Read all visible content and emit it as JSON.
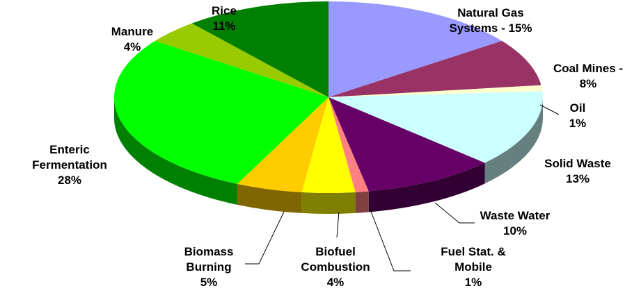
{
  "chart_data": {
    "type": "pie3d",
    "categories": [
      "Natural Gas Systems -",
      "Coal Mines -",
      "Oil",
      "Solid Waste",
      "Waste Water",
      "Fuel Stat. & Mobile",
      "Biofuel Combustion",
      "Biomass Burning",
      "Enteric Fermentation",
      "Manure",
      "Rice"
    ],
    "values": [
      15,
      8,
      1,
      13,
      10,
      1,
      4,
      5,
      28,
      4,
      11
    ],
    "value_labels": [
      "15%",
      "8%",
      "1%",
      "13%",
      "10%",
      "1%",
      "4%",
      "5%",
      "28%",
      "4%",
      "11%"
    ],
    "colors": [
      "#9999ff",
      "#993366",
      "#ffffcc",
      "#ccffff",
      "#660066",
      "#ff8080",
      "#ffff00",
      "#ffcc00",
      "#00ff00",
      "#99cc00",
      "#008000"
    ]
  }
}
